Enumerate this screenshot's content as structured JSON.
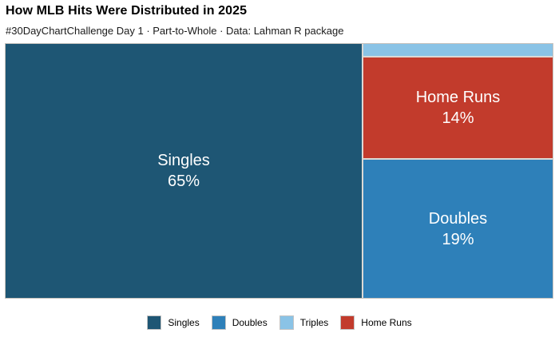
{
  "header": {
    "title": "How MLB Hits Were Distributed in 2025",
    "subtitle": "#30DayChartChallenge Day 1 · Part-to-Whole · Data: Lahman R package"
  },
  "colors": {
    "singles": "#1e5674",
    "doubles": "#2e80b9",
    "triples": "#8ac3e6",
    "home_runs": "#c23b2c",
    "block_gap": "#dcd9d5",
    "label_text": "#ffffff"
  },
  "treemap": {
    "singles": {
      "label": "Singles",
      "pct": "65%"
    },
    "doubles": {
      "label": "Doubles",
      "pct": "19%"
    },
    "home_runs": {
      "label": "Home Runs",
      "pct": "14%"
    },
    "triples": {
      "label": "Triples",
      "pct": ""
    }
  },
  "legend": {
    "items": [
      {
        "label": "Singles",
        "color": "#1e5674"
      },
      {
        "label": "Doubles",
        "color": "#2e80b9"
      },
      {
        "label": "Triples",
        "color": "#8ac3e6"
      },
      {
        "label": "Home Runs",
        "color": "#c23b2c"
      }
    ]
  },
  "chart_data": {
    "type": "treemap",
    "title": "How MLB Hits Were Distributed in 2025",
    "subtitle": "#30DayChartChallenge Day 1 · Part-to-Whole · Data: Lahman R package",
    "categories": [
      "Singles",
      "Doubles",
      "Triples",
      "Home Runs"
    ],
    "values": [
      65,
      19,
      2,
      14
    ],
    "unit": "percent of all hits",
    "value_labels": [
      "65%",
      "19%",
      null,
      "14%"
    ],
    "colors": [
      "#1e5674",
      "#2e80b9",
      "#8ac3e6",
      "#c23b2c"
    ],
    "legend_position": "bottom",
    "layout": "Singles fills full-height left column (65% width); right column stacks Triples (thin top strip, unlabeled, value inferred as remainder 2%), Home Runs, Doubles"
  }
}
